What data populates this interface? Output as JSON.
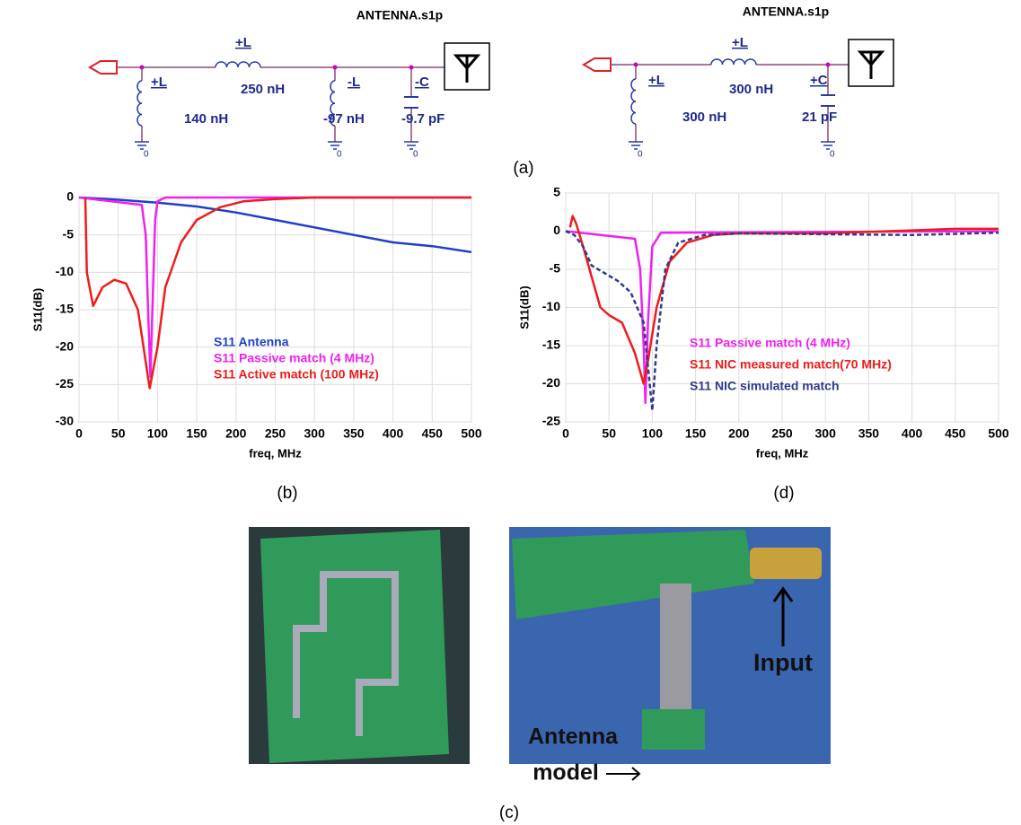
{
  "schematics": [
    {
      "file": "ANTENNA.s1p",
      "components": [
        {
          "type": "+L",
          "value": "140 nH"
        },
        {
          "type": "+L",
          "value": "250 nH"
        },
        {
          "type": "-L",
          "value": "-97 nH"
        },
        {
          "type": "-C",
          "value": "-9.7 pF"
        }
      ],
      "ground": "0"
    },
    {
      "file": "ANTENNA.s1p",
      "components": [
        {
          "type": "+L",
          "value": "300 nH"
        },
        {
          "type": "+L",
          "value": "300 nH"
        },
        {
          "type": "+C",
          "value": "21 pF"
        }
      ],
      "ground": "0"
    }
  ],
  "panel_labels": [
    "(a)",
    "(b)",
    "(d)",
    "(c)"
  ],
  "photo": {
    "labels": [
      "Input",
      "Antenna",
      "model"
    ]
  },
  "chart_data": [
    {
      "type": "line",
      "xlabel": "freq, MHz",
      "ylabel": "S11(dB)",
      "xlim": [
        0,
        500
      ],
      "ylim": [
        -30,
        0
      ],
      "xticks": [
        0,
        50,
        100,
        150,
        200,
        250,
        300,
        350,
        400,
        450,
        500
      ],
      "yticks": [
        0,
        -5,
        -10,
        -15,
        -20,
        -25,
        -30
      ],
      "grid": true,
      "series": [
        {
          "name": "S11 Antenna",
          "color": "#1f3fc8",
          "x": [
            0,
            50,
            100,
            150,
            200,
            250,
            300,
            350,
            400,
            450,
            500
          ],
          "values": [
            0,
            -0.3,
            -0.7,
            -1.2,
            -2,
            -3,
            -4,
            -5,
            -6,
            -6.5,
            -7.3
          ]
        },
        {
          "name": "S11 Passive match (4 MHz)",
          "color": "#f020f0",
          "x": [
            0,
            80,
            85,
            88,
            91,
            94,
            97,
            100,
            110,
            500
          ],
          "values": [
            0,
            -1,
            -5,
            -15,
            -24,
            -13,
            -3,
            -0.5,
            0,
            0
          ]
        },
        {
          "name": "S11 Active match (100 MHz)",
          "color": "#ee1c1c",
          "x": [
            8,
            10,
            18,
            30,
            45,
            60,
            75,
            85,
            90,
            100,
            110,
            130,
            150,
            180,
            210,
            250,
            300,
            500
          ],
          "values": [
            0,
            -10,
            -14.5,
            -12,
            -11,
            -11.5,
            -15,
            -22,
            -25.5,
            -20,
            -12,
            -6,
            -3,
            -1.3,
            -0.5,
            -0.2,
            0,
            0
          ]
        }
      ]
    },
    {
      "type": "line",
      "xlabel": "freq, MHz",
      "ylabel": "S11(dB)",
      "xlim": [
        0,
        500
      ],
      "ylim": [
        -25,
        5
      ],
      "xticks": [
        0,
        50,
        100,
        150,
        200,
        250,
        300,
        350,
        400,
        450,
        500
      ],
      "yticks": [
        5,
        0,
        -5,
        -10,
        -15,
        -20,
        -25
      ],
      "grid": true,
      "series": [
        {
          "name": "S11 Passive match (4 MHz)",
          "color": "#f020f0",
          "x": [
            0,
            80,
            86,
            90,
            92,
            95,
            100,
            110,
            500
          ],
          "values": [
            0,
            -1,
            -5,
            -15,
            -22.5,
            -12,
            -2,
            -0.2,
            0
          ]
        },
        {
          "name": "S11 NIC measured match(70 MHz)",
          "color": "#ee1c1c",
          "x": [
            5,
            8,
            12,
            20,
            30,
            40,
            50,
            65,
            80,
            90,
            95,
            105,
            120,
            140,
            170,
            200,
            300,
            400,
            450,
            500
          ],
          "values": [
            0.5,
            2,
            1,
            -2,
            -6,
            -10,
            -11,
            -12,
            -16,
            -20,
            -17,
            -10,
            -4,
            -1.5,
            -0.5,
            -0.3,
            -0.3,
            0.1,
            0.3,
            0.3
          ]
        },
        {
          "name": "S11 NIC simulated match",
          "color": "#2e3a8c",
          "style": "dashed",
          "x": [
            0,
            10,
            20,
            30,
            45,
            60,
            75,
            90,
            100,
            105,
            115,
            130,
            160,
            200,
            400,
            500
          ],
          "values": [
            0,
            -0.5,
            -2,
            -4.5,
            -5.5,
            -6.5,
            -8,
            -12,
            -23.5,
            -15,
            -5,
            -1.5,
            -0.5,
            -0.3,
            -0.5,
            -0.2
          ]
        }
      ]
    }
  ]
}
